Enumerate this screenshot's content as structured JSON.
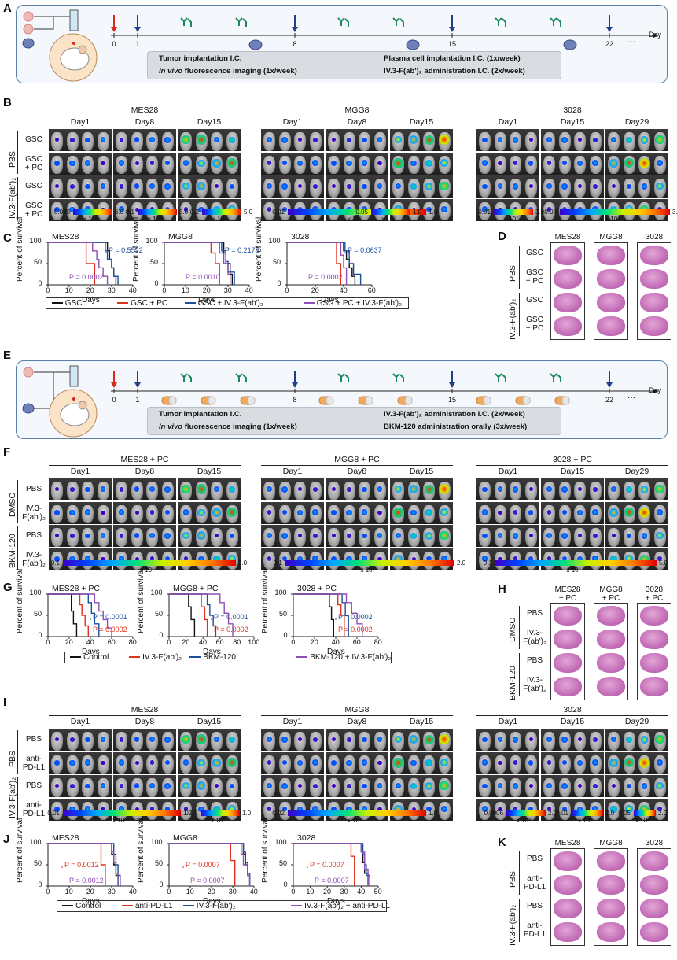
{
  "panels": {
    "A": "A",
    "B": "B",
    "C": "C",
    "D": "D",
    "E": "E",
    "F": "F",
    "G": "G",
    "H": "H",
    "I": "I",
    "J": "J",
    "K": "K"
  },
  "timelineA": {
    "days": [
      "0",
      "1",
      "8",
      "15",
      "22",
      "..."
    ],
    "axis_label": "Day",
    "legend": [
      "Tumor implantation I.C.",
      "In vivo fluorescence imaging (1x/week)",
      "Plasma cell implantation I.C. (1x/week)",
      "IV.3-F(ab')₂ administration I.C. (2x/week)"
    ]
  },
  "timelineE": {
    "days": [
      "0",
      "1",
      "8",
      "15",
      "22",
      "..."
    ],
    "axis_label": "Day",
    "legend": [
      "Tumor implantation I.C.",
      "In vivo fluorescence imaging (1x/week)",
      "IV.3-F(ab')₂ administration I.C. (2x/week)",
      "BKM-120 administration orally (3x/week)"
    ]
  },
  "B": {
    "lines": [
      "MES28",
      "MGG8",
      "3028"
    ],
    "days": [
      [
        "Day1",
        "Day8",
        "Day15"
      ],
      [
        "Day1",
        "Day8",
        "Day15"
      ],
      [
        "Day1",
        "Day15",
        "Day29"
      ]
    ],
    "rows": [
      "GSC",
      "GSC\n+ PC",
      "GSC",
      "GSC\n+ PC"
    ],
    "groups": [
      "PBS",
      "IV.3-F(ab')₂"
    ],
    "scales": [
      {
        "min": "0.045",
        "max": "6.0",
        "unit": "x 10⁶"
      },
      {
        "min": "0.1",
        "max": "5.0",
        "unit": "x 10⁶"
      },
      {
        "min": "0.2",
        "max": "5.0",
        "unit": "x 10⁶"
      },
      {
        "min": "0.01",
        "max": "1.0",
        "unit": "x 10⁷"
      },
      {
        "min": "0.05",
        "max": "1.0",
        "unit": "x 10⁷"
      },
      {
        "min": "0.01",
        "max": "3.0",
        "unit": "x 10⁷"
      },
      {
        "min": "0.08",
        "max": "3.0",
        "unit": "x 10⁷"
      }
    ]
  },
  "C": {
    "ylabel": "Percent of survival",
    "xlabel": "Days",
    "legend": [
      "GSC",
      "GSC + PC",
      "GSC + IV.3-F(ab')₂",
      "GSC + PC + IV.3-F(ab')₂"
    ],
    "plots": [
      {
        "title": "MES28",
        "p_top": "P = 0.5592",
        "p_bot": "P = 0.0002",
        "xticks": [
          "0",
          "10",
          "20",
          "30",
          "40"
        ]
      },
      {
        "title": "MGG8",
        "p_top": "P = 0.2175",
        "p_bot": "P = 0.0010",
        "xticks": [
          "0",
          "10",
          "20",
          "30",
          "40"
        ]
      },
      {
        "title": "3028",
        "p_top": "P = 0.0637",
        "p_bot": "P = 0.0002",
        "xticks": [
          "0",
          "20",
          "40",
          "60"
        ]
      }
    ],
    "yticks": [
      "0",
      "50",
      "100"
    ]
  },
  "D": {
    "cols": [
      "MES28",
      "MGG8",
      "3028"
    ],
    "rows": [
      "GSC",
      "GSC\n+ PC",
      "GSC",
      "GSC\n+ PC"
    ],
    "groups": [
      "PBS",
      "IV.3-F(ab')₂"
    ]
  },
  "F": {
    "lines": [
      "MES28 + PC",
      "MGG8 + PC",
      "3028 + PC"
    ],
    "days": [
      [
        "Day1",
        "Day8",
        "Day15"
      ],
      [
        "Day1",
        "Day8",
        "Day15"
      ],
      [
        "Day1",
        "Day15",
        "Day29"
      ]
    ],
    "rows": [
      "PBS",
      "IV.3-\nF(ab')₂",
      "PBS",
      "IV.3-\nF(ab')₂"
    ],
    "groups": [
      "DMSO",
      "BKM-120"
    ],
    "scales": [
      {
        "min": "0.1",
        "max": "2.0",
        "unit": "x 10⁶"
      },
      {
        "min": "0.1",
        "max": "2.0",
        "unit": "x 10⁶"
      },
      {
        "min": "0.1",
        "max": "5.0",
        "unit": "x 10⁶"
      }
    ]
  },
  "G": {
    "ylabel": "Percent of survival",
    "xlabel": "Days",
    "legend": [
      "Control",
      "IV.3-F(ab')₂",
      "BKM-120",
      "BKM-120 + IV.3-F(ab')₂"
    ],
    "plots": [
      {
        "title": "MES28 + PC",
        "p_top": "P = 0.0001",
        "p_bot": "P = 0.0002",
        "xticks": [
          "0",
          "20",
          "40",
          "60",
          "80"
        ]
      },
      {
        "title": "MGG8 + PC",
        "p_top": "P = 0.0001",
        "p_bot": "P = 0.0002",
        "xticks": [
          "0",
          "20",
          "40",
          "60",
          "80",
          "100"
        ]
      },
      {
        "title": "3028 + PC",
        "p_top": "P = 0.0002",
        "p_bot": "P = 0.0002",
        "xticks": [
          "0",
          "20",
          "40",
          "60",
          "80"
        ]
      }
    ],
    "yticks": [
      "0",
      "50",
      "100"
    ]
  },
  "H": {
    "cols": [
      "MES28\n+ PC",
      "MGG8\n+ PC",
      "3028\n+ PC"
    ],
    "rows": [
      "PBS",
      "IV.3-\nF(ab')₂",
      "PBS",
      "IV.3-\nF(ab')₂"
    ],
    "groups": [
      "DMSO",
      "BKM-120"
    ]
  },
  "I": {
    "lines": [
      "MES28",
      "MGG8",
      "3028"
    ],
    "days": [
      [
        "Day1",
        "Day8",
        "Day15"
      ],
      [
        "Day1",
        "Day8",
        "Day15"
      ],
      [
        "Day1",
        "Day15",
        "Day29"
      ]
    ],
    "rows": [
      "PBS",
      "anti-\nPD-L1",
      "PBS",
      "anti-\nPD-L1"
    ],
    "groups": [
      "PBS",
      "IV.3-F(ab')₂"
    ],
    "scales": [
      {
        "min": "0.01",
        "max": "1.0",
        "unit": "x 10⁷"
      },
      {
        "min": "0.02",
        "max": "1.0",
        "unit": "x 10⁷"
      },
      {
        "min": "0.02",
        "max": "1.0",
        "unit": "x 10⁷"
      },
      {
        "min": "0.0006",
        "max": "2.0",
        "unit": "x 10⁸"
      },
      {
        "min": "0.01",
        "max": "2.0",
        "unit": "x 10⁸"
      },
      {
        "min": "0.05",
        "max": "2.0",
        "unit": "x 10⁸"
      }
    ]
  },
  "J": {
    "ylabel": "Percent of survival",
    "xlabel": "Days",
    "legend": [
      "Control",
      "anti-PD-L1",
      "IV.3-F(ab')₂",
      "IV.3-F(ab')₂ + anti-PD-L1"
    ],
    "plots": [
      {
        "title": "MES28",
        "p_top": "P = 0.0012",
        "p_bot": "P = 0.0012",
        "xticks": [
          "0",
          "10",
          "20",
          "30",
          "40"
        ]
      },
      {
        "title": "MGG8",
        "p_top": "P = 0.0007",
        "p_bot": "P = 0.0007",
        "xticks": [
          "0",
          "10",
          "20",
          "30",
          "40"
        ]
      },
      {
        "title": "3028",
        "p_top": "P = 0.0007",
        "p_bot": "P = 0.0007",
        "xticks": [
          "0",
          "10",
          "20",
          "30",
          "40",
          "50"
        ]
      }
    ],
    "yticks": [
      "0",
      "50",
      "100"
    ]
  },
  "K": {
    "cols": [
      "MES28",
      "MGG8",
      "3028"
    ],
    "rows": [
      "PBS",
      "anti-\nPD-L1",
      "PBS",
      "anti-\nPD-L1"
    ],
    "groups": [
      "PBS",
      "IV.3-F(ab')₂"
    ]
  },
  "colors": {
    "black": "#111111",
    "red": "#e0301e",
    "blue": "#1f4e9c",
    "purple": "#8e4fb5",
    "arrow_red": "#d6281b",
    "arrow_blue": "#1f3f86",
    "antibody": "#1a8a5a"
  }
}
